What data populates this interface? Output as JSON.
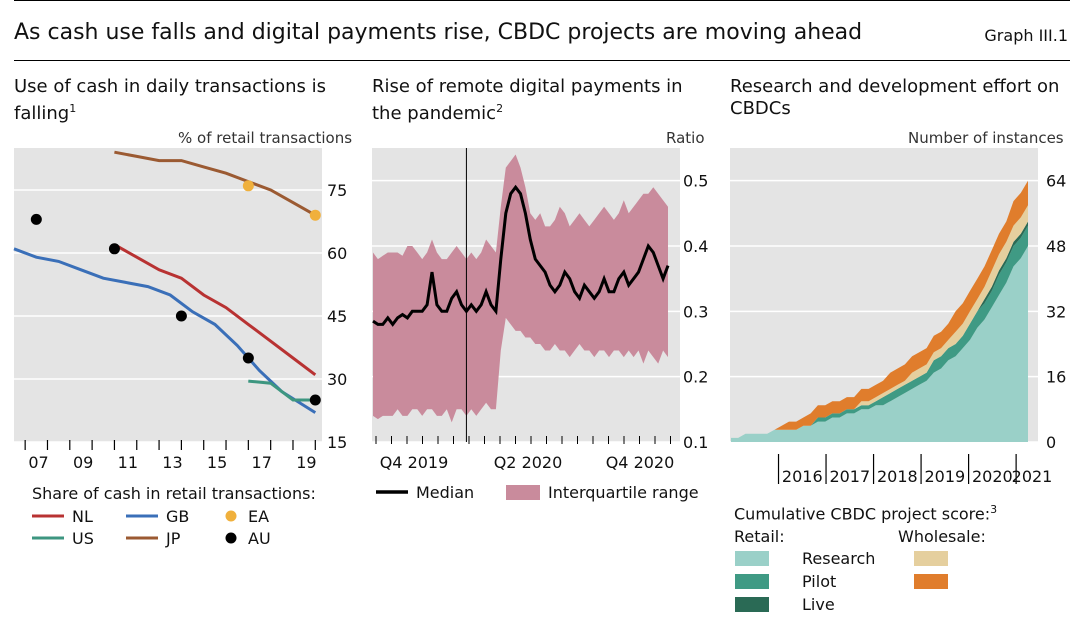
{
  "header": {
    "title": "As cash use falls and digital payments rise, CBDC projects are moving ahead",
    "graph_number": "Graph III.1"
  },
  "panels": [
    {
      "title": "Use of cash in daily transactions is falling",
      "footnote": "1",
      "unit": "% of retail transactions"
    },
    {
      "title": "Rise of remote digital payments in the pandemic",
      "footnote": "2",
      "unit": "Ratio"
    },
    {
      "title": "Research and development effort on CBDCs",
      "unit": "Number of instances"
    }
  ],
  "legend1": {
    "heading": "Share of cash in retail transactions:",
    "items": [
      {
        "label": "NL",
        "color": "#b83232",
        "kind": "line"
      },
      {
        "label": "GB",
        "color": "#3a6fb8",
        "kind": "line"
      },
      {
        "label": "EA",
        "color": "#f0b03c",
        "kind": "dot"
      },
      {
        "label": "US",
        "color": "#3d9680",
        "kind": "line"
      },
      {
        "label": "JP",
        "color": "#9b5a32",
        "kind": "line"
      },
      {
        "label": "AU",
        "color": "#000000",
        "kind": "dot"
      }
    ]
  },
  "legend2": {
    "items": [
      {
        "label": "Median",
        "color": "#000000"
      },
      {
        "label": "Interquartile range",
        "color": "#c98b9c"
      }
    ]
  },
  "legend3": {
    "heading": "Cumulative CBDC project score:",
    "footnote": "3",
    "retail_label": "Retail:",
    "wholesale_label": "Wholesale:",
    "rows": [
      "Research",
      "Pilot",
      "Live"
    ],
    "colors": {
      "retail_research": "#9ad0c8",
      "retail_pilot": "#3f9a84",
      "retail_live": "#2a6a55",
      "wholesale_research": "#e5cf9e",
      "wholesale_pilot": "#e07d2c"
    }
  },
  "chart_data": [
    {
      "type": "line",
      "title": "Use of cash in daily transactions is falling",
      "ylabel": "% of retail transactions",
      "ylim": [
        15,
        85
      ],
      "xlim": [
        2006.0,
        2019.8
      ],
      "yticks": [
        15,
        30,
        45,
        60,
        75
      ],
      "xticks": [
        2007,
        2009,
        2011,
        2013,
        2015,
        2017,
        2019
      ],
      "xtick_labels": [
        "07",
        "09",
        "11",
        "13",
        "15",
        "17",
        "19"
      ],
      "series": [
        {
          "name": "NL",
          "color": "#b83232",
          "points": [
            [
              2010.5,
              62
            ],
            [
              2011.5,
              59
            ],
            [
              2012.5,
              56
            ],
            [
              2013.5,
              54
            ],
            [
              2014.5,
              50
            ],
            [
              2015.5,
              47
            ],
            [
              2016.5,
              43
            ],
            [
              2017.5,
              39
            ],
            [
              2018.5,
              35
            ],
            [
              2019.5,
              31
            ]
          ]
        },
        {
          "name": "GB",
          "color": "#3a6fb8",
          "points": [
            [
              2006,
              61
            ],
            [
              2007,
              59
            ],
            [
              2008,
              58
            ],
            [
              2009,
              56
            ],
            [
              2010,
              54
            ],
            [
              2011,
              53
            ],
            [
              2012,
              52
            ],
            [
              2013,
              50
            ],
            [
              2014,
              46
            ],
            [
              2015,
              43
            ],
            [
              2016,
              38
            ],
            [
              2017,
              32
            ],
            [
              2018,
              27
            ],
            [
              2019.5,
              22
            ]
          ]
        },
        {
          "name": "US",
          "color": "#3d9680",
          "points": [
            [
              2016.5,
              29.5
            ],
            [
              2017.5,
              29
            ],
            [
              2018.5,
              25
            ],
            [
              2019.5,
              25
            ]
          ]
        },
        {
          "name": "JP",
          "color": "#9b5a32",
          "points": [
            [
              2010.5,
              84
            ],
            [
              2011.5,
              83
            ],
            [
              2012.5,
              82
            ],
            [
              2013.5,
              82
            ],
            [
              2014.5,
              80.5
            ],
            [
              2015.5,
              79
            ],
            [
              2016.5,
              77
            ],
            [
              2017.5,
              75
            ],
            [
              2018.5,
              72
            ],
            [
              2019.5,
              69
            ]
          ]
        },
        {
          "name": "EA",
          "color": "#f0b03c",
          "kind": "scatter",
          "points": [
            [
              2016.5,
              76
            ],
            [
              2019.5,
              69
            ]
          ]
        },
        {
          "name": "AU",
          "color": "#000000",
          "kind": "scatter",
          "points": [
            [
              2007,
              68
            ],
            [
              2010.5,
              61
            ],
            [
              2013.5,
              45
            ],
            [
              2016.5,
              35
            ],
            [
              2019.5,
              25
            ]
          ]
        }
      ]
    },
    {
      "type": "area",
      "title": "Rise of remote digital payments in the pandemic",
      "ylabel": "Ratio",
      "ylim": [
        0.1,
        0.55
      ],
      "yticks": [
        0.1,
        0.2,
        0.3,
        0.4,
        0.5
      ],
      "xtick_labels": [
        "Q4 2019",
        "Q2 2020",
        "Q4 2020"
      ],
      "pandemic_marker_week": 19,
      "median": [
        0.285,
        0.28,
        0.28,
        0.29,
        0.28,
        0.29,
        0.295,
        0.29,
        0.3,
        0.3,
        0.3,
        0.31,
        0.36,
        0.31,
        0.3,
        0.3,
        0.32,
        0.33,
        0.31,
        0.3,
        0.31,
        0.3,
        0.31,
        0.33,
        0.31,
        0.3,
        0.38,
        0.45,
        0.48,
        0.49,
        0.48,
        0.45,
        0.41,
        0.38,
        0.37,
        0.36,
        0.34,
        0.33,
        0.34,
        0.36,
        0.35,
        0.33,
        0.32,
        0.34,
        0.33,
        0.32,
        0.33,
        0.35,
        0.33,
        0.33,
        0.35,
        0.36,
        0.34,
        0.35,
        0.36,
        0.38,
        0.4,
        0.39,
        0.37,
        0.35,
        0.37
      ],
      "q3": [
        0.39,
        0.38,
        0.385,
        0.39,
        0.39,
        0.39,
        0.385,
        0.4,
        0.4,
        0.39,
        0.38,
        0.39,
        0.41,
        0.39,
        0.38,
        0.38,
        0.39,
        0.4,
        0.39,
        0.38,
        0.39,
        0.38,
        0.39,
        0.41,
        0.4,
        0.39,
        0.46,
        0.52,
        0.53,
        0.54,
        0.52,
        0.49,
        0.45,
        0.44,
        0.45,
        0.43,
        0.43,
        0.44,
        0.46,
        0.45,
        0.43,
        0.44,
        0.45,
        0.44,
        0.43,
        0.44,
        0.45,
        0.46,
        0.45,
        0.44,
        0.45,
        0.47,
        0.45,
        0.46,
        0.47,
        0.48,
        0.48,
        0.49,
        0.48,
        0.47,
        0.46
      ],
      "q1": [
        0.14,
        0.135,
        0.14,
        0.14,
        0.14,
        0.15,
        0.14,
        0.14,
        0.15,
        0.15,
        0.14,
        0.15,
        0.15,
        0.14,
        0.14,
        0.15,
        0.13,
        0.15,
        0.15,
        0.14,
        0.15,
        0.14,
        0.15,
        0.16,
        0.15,
        0.15,
        0.24,
        0.29,
        0.28,
        0.27,
        0.27,
        0.26,
        0.26,
        0.25,
        0.25,
        0.24,
        0.24,
        0.25,
        0.24,
        0.24,
        0.23,
        0.24,
        0.25,
        0.24,
        0.24,
        0.23,
        0.24,
        0.24,
        0.23,
        0.24,
        0.24,
        0.23,
        0.24,
        0.23,
        0.24,
        0.22,
        0.24,
        0.23,
        0.22,
        0.24,
        0.23
      ]
    },
    {
      "type": "area",
      "stacked": true,
      "title": "Research and development effort on CBDCs",
      "ylabel": "Number of instances",
      "ylim": [
        0,
        72
      ],
      "yticks": [
        0,
        16,
        32,
        48,
        64
      ],
      "xtick_labels": [
        "2016",
        "2017",
        "2018",
        "2019",
        "2020",
        "2021"
      ],
      "x_range_years": [
        2015.0,
        2021.25
      ],
      "series": [
        {
          "name": "Retail research",
          "color": "#9ad0c8",
          "values": [
            1,
            1,
            2,
            2,
            2,
            2,
            3,
            3,
            3,
            3,
            4,
            4,
            5,
            5,
            6,
            6,
            7,
            7,
            8,
            8,
            9,
            9,
            10,
            11,
            12,
            13,
            14,
            15,
            17,
            18,
            20,
            21,
            23,
            25,
            28,
            30,
            33,
            36,
            39,
            43,
            45,
            48
          ]
        },
        {
          "name": "Retail pilot",
          "color": "#3f9a84",
          "values": [
            0,
            0,
            0,
            0,
            0,
            0,
            0,
            0,
            0,
            0,
            0,
            0,
            1,
            1,
            1,
            1,
            1,
            1,
            1,
            1,
            1,
            2,
            2,
            2,
            2,
            2,
            2,
            2,
            3,
            3,
            3,
            3,
            3,
            4,
            4,
            4,
            4,
            5,
            5,
            5,
            5,
            5
          ]
        },
        {
          "name": "Retail live",
          "color": "#2a6a55",
          "values": [
            0,
            0,
            0,
            0,
            0,
            0,
            0,
            0,
            0,
            0,
            0,
            0,
            0,
            0,
            0,
            0,
            0,
            0,
            0,
            0,
            0,
            0,
            0,
            0,
            0,
            0,
            0,
            0,
            0,
            0,
            0,
            0,
            0,
            0,
            0,
            1,
            1,
            1,
            1,
            1,
            1,
            1
          ]
        },
        {
          "name": "Wholesale research",
          "color": "#e5cf9e",
          "values": [
            0,
            0,
            0,
            0,
            0,
            0,
            0,
            0,
            0,
            0,
            0,
            0,
            0,
            0,
            0,
            0,
            0,
            0,
            1,
            1,
            1,
            1,
            1,
            1,
            1,
            2,
            2,
            2,
            2,
            2,
            2,
            3,
            3,
            3,
            3,
            3,
            4,
            4,
            4,
            4,
            4,
            4
          ]
        },
        {
          "name": "Wholesale pilot",
          "color": "#e07d2c",
          "values": [
            0,
            0,
            0,
            0,
            0,
            0,
            0,
            1,
            2,
            2,
            2,
            3,
            3,
            3,
            3,
            3,
            3,
            3,
            3,
            3,
            3,
            3,
            4,
            4,
            4,
            4,
            4,
            4,
            4,
            4,
            4,
            5,
            5,
            5,
            5,
            5,
            5,
            5,
            5,
            6,
            6,
            6
          ]
        }
      ]
    }
  ]
}
